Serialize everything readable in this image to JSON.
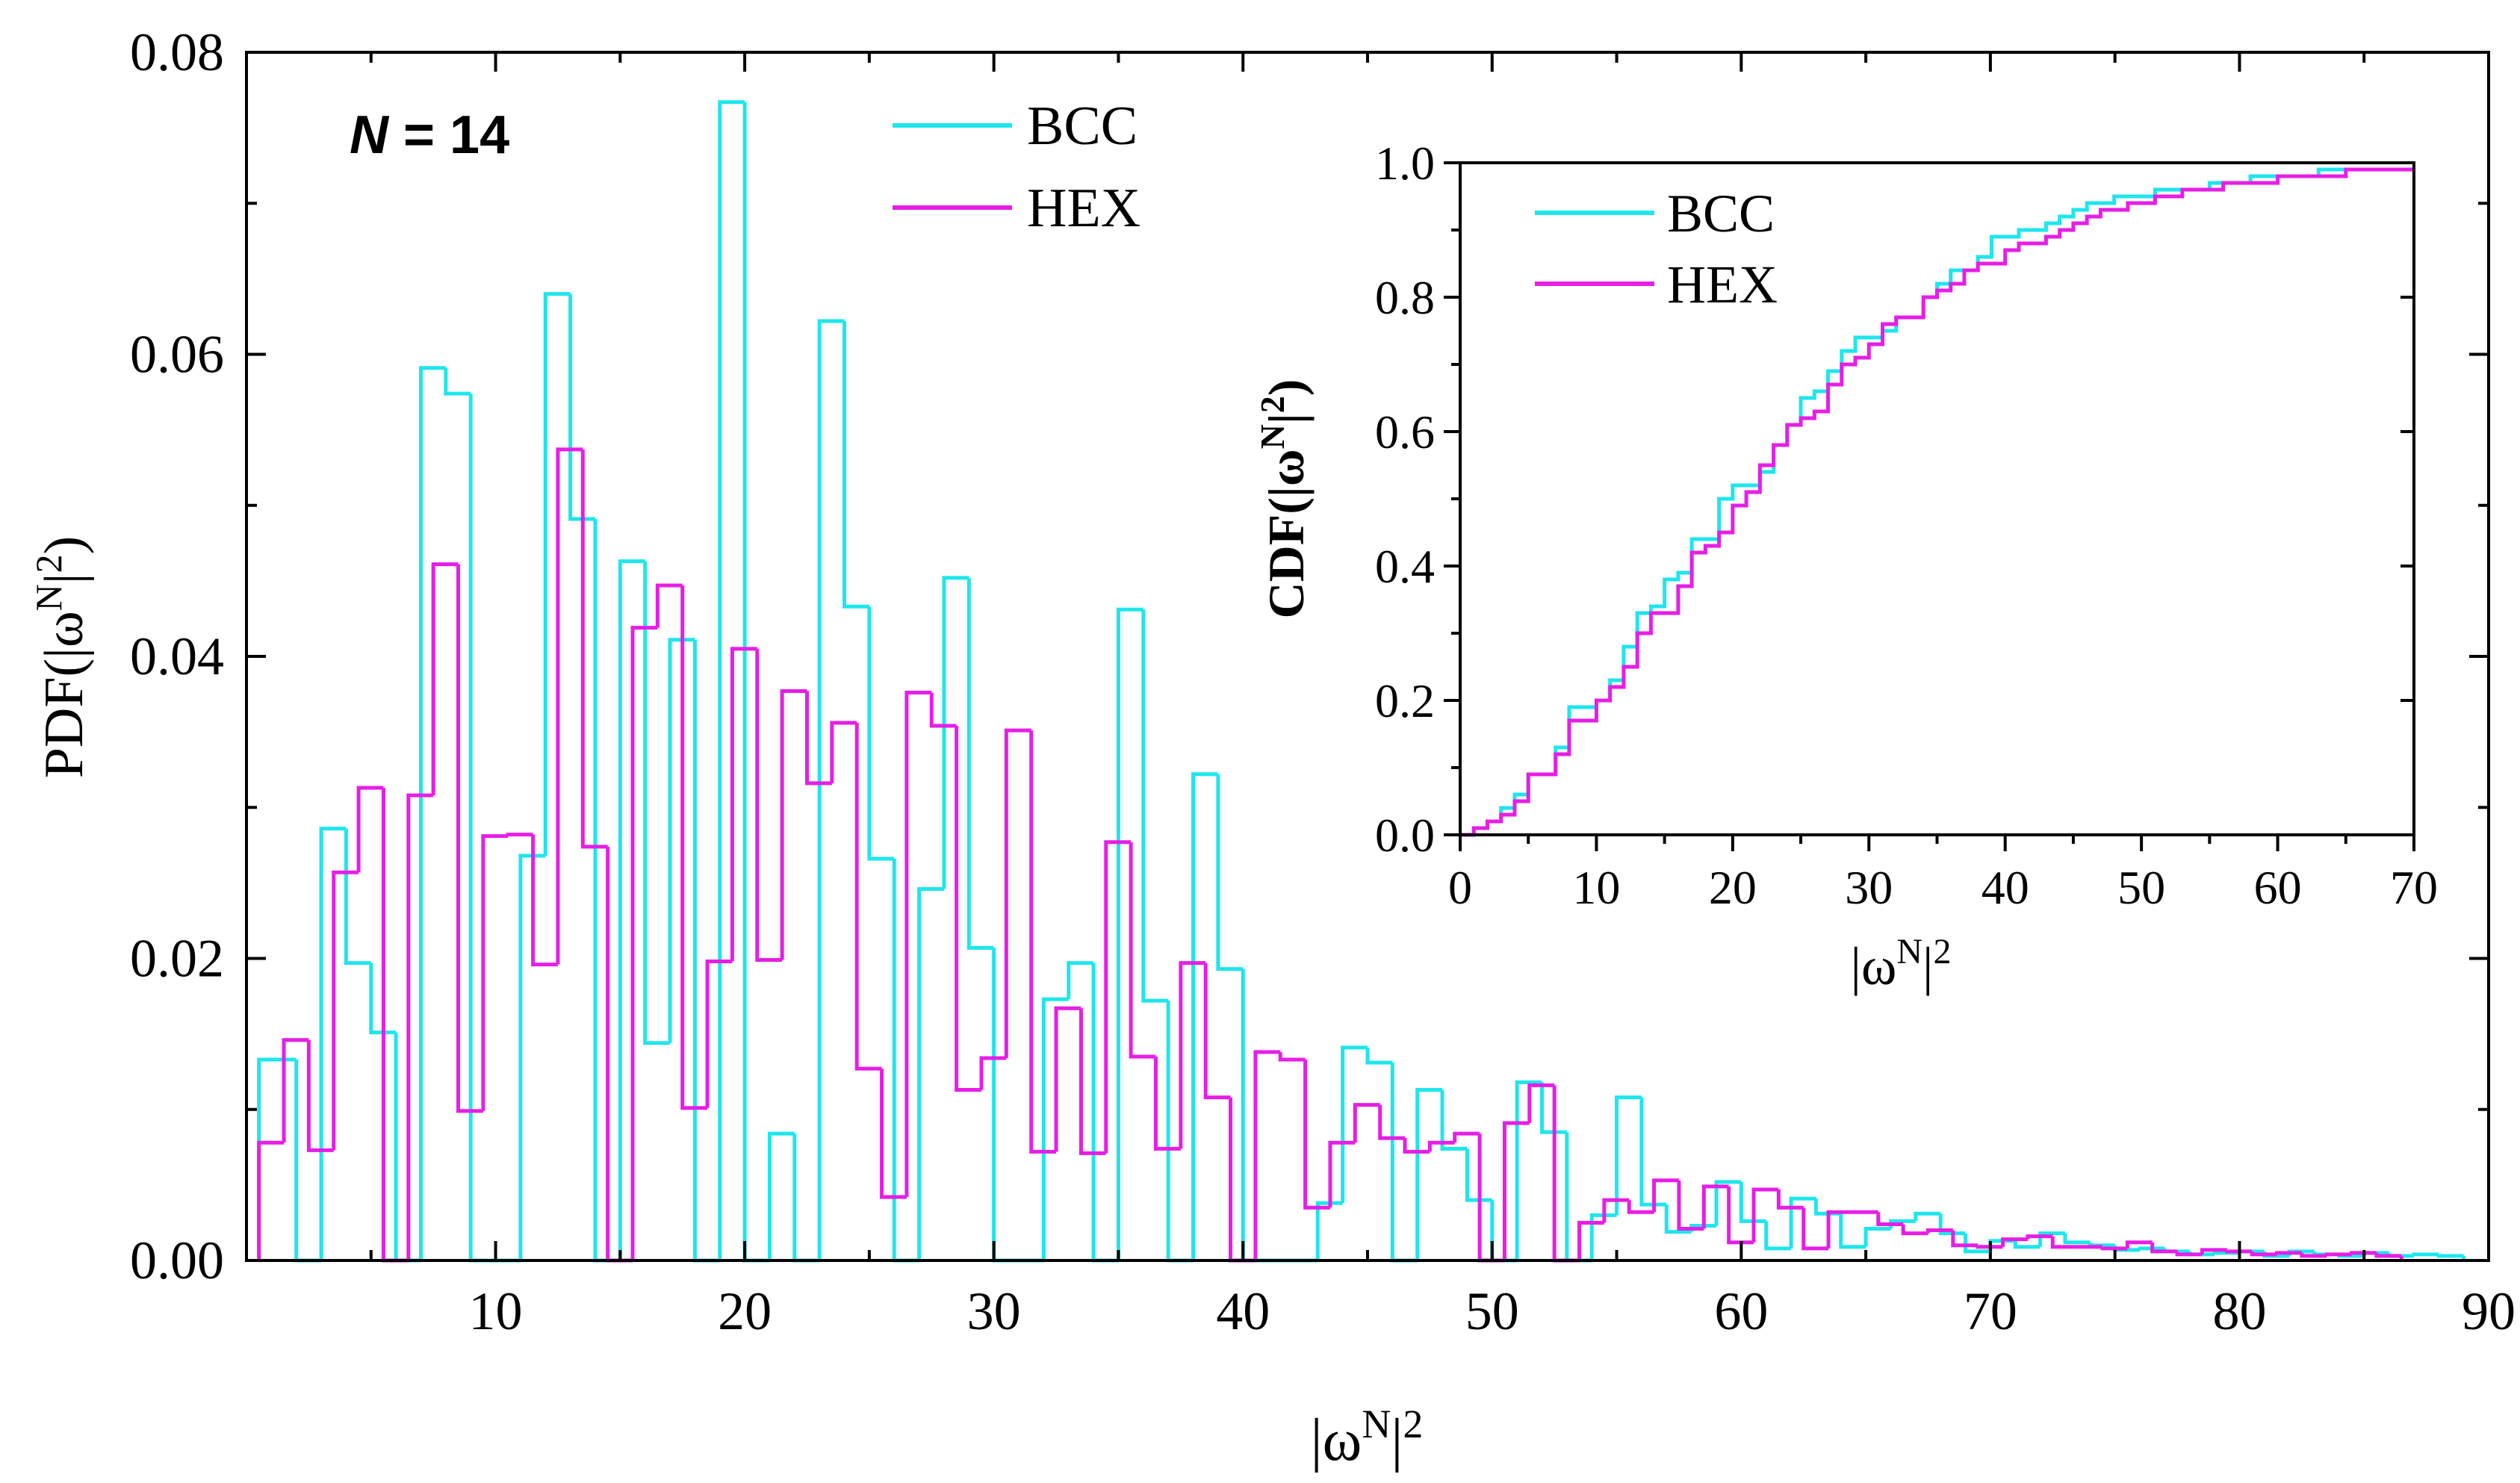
{
  "colors": {
    "bcc": "#1ee6ec",
    "hex": "#e61ee6",
    "axis": "#000000"
  },
  "chart_data": [
    {
      "type": "histogram",
      "role": "main",
      "annotation": {
        "prefix": "N",
        "suffix": " = 14"
      },
      "xlabel": {
        "prefix": "|ω",
        "sup1": "N",
        "mid": "|",
        "sup2": "2"
      },
      "ylabel": {
        "prefix": "PDF(|ω",
        "sup1": "N",
        "mid": "|",
        "sup2": "2",
        "suffix": ")"
      },
      "xlim": [
        0,
        90
      ],
      "ylim": [
        0,
        0.08
      ],
      "xticks": [
        10,
        20,
        30,
        40,
        50,
        60,
        70,
        80,
        90
      ],
      "xtick_labels": [
        "10",
        "20",
        "30",
        "40",
        "50",
        "60",
        "70",
        "80",
        "90"
      ],
      "yticks": [
        0,
        0.02,
        0.04,
        0.06,
        0.08
      ],
      "ytick_labels": [
        "0.00",
        "0.02",
        "0.04",
        "0.06",
        "0.08"
      ],
      "legend": [
        "BCC",
        "HEX"
      ],
      "series": [
        {
          "name": "BCC",
          "edges": [
            0.5,
            2,
            3,
            4,
            5,
            6,
            7,
            8,
            9,
            10,
            11,
            12,
            13,
            14,
            15,
            16,
            17,
            18,
            19,
            20,
            21,
            22,
            23,
            24,
            25,
            26,
            27,
            28,
            29,
            30,
            31,
            32,
            33,
            34,
            35,
            36,
            37,
            38,
            39,
            40,
            41,
            42,
            43,
            44,
            45,
            46,
            47,
            48,
            49,
            50,
            51,
            52,
            53,
            54,
            55,
            56,
            57,
            58,
            59,
            60,
            61,
            62,
            63,
            64,
            65,
            66,
            67,
            68,
            69,
            70,
            71,
            72,
            73,
            74,
            75,
            76,
            77,
            78,
            79,
            80,
            81,
            82,
            83,
            84,
            85,
            86,
            87,
            88,
            89
          ],
          "values": [
            0.0133,
            0.0,
            0.0286,
            0.0197,
            0.0151,
            0.0,
            0.0591,
            0.0574,
            0.0,
            0.0,
            0.0268,
            0.064,
            0.0491,
            0.0,
            0.0463,
            0.0144,
            0.0411,
            0.0,
            0.0767,
            0.0,
            0.0084,
            0.0,
            0.0622,
            0.0433,
            0.0266,
            0.0,
            0.0246,
            0.0452,
            0.0207,
            0.0,
            0.0,
            0.0173,
            0.0197,
            0.0,
            0.0431,
            0.0172,
            0.0,
            0.0322,
            0.0193,
            0.0,
            0.0,
            0.0,
            0.0038,
            0.0141,
            0.0131,
            0.0,
            0.0113,
            0.0074,
            0.004,
            0.0,
            0.0118,
            0.0085,
            0.0,
            0.003,
            0.0108,
            0.0037,
            0.0019,
            0.0023,
            0.0052,
            0.0026,
            0.0008,
            0.0041,
            0.0031,
            0.0009,
            0.0021,
            0.0026,
            0.0031,
            0.0018,
            0.0006,
            0.0013,
            0.0009,
            0.0018,
            0.0012,
            0.001,
            0.0007,
            0.0008,
            0.0006,
            0.0004,
            0.0005,
            0.0006,
            0.0003,
            0.0006,
            0.0004,
            0.0003,
            0.0005,
            0.0003,
            0.0004,
            0.0003
          ]
        },
        {
          "name": "HEX",
          "edges": [
            0.5,
            1.5,
            2.5,
            3.5,
            4.5,
            5.5,
            6.5,
            7.5,
            8.5,
            9.5,
            10.5,
            11.5,
            12.5,
            13.5,
            14.5,
            15.5,
            16.5,
            17.5,
            18.5,
            19.5,
            20.5,
            21.5,
            22.5,
            23.5,
            24.5,
            25.5,
            26.5,
            27.5,
            28.5,
            29.5,
            30.5,
            31.5,
            32.5,
            33.5,
            34.5,
            35.5,
            36.5,
            37.5,
            38.5,
            39.5,
            40.5,
            41.5,
            42.5,
            43.5,
            44.5,
            45.5,
            46.5,
            47.5,
            48.5,
            49.5,
            50.5,
            51.5,
            52.5,
            53.5,
            54.5,
            55.5,
            56.5,
            57.5,
            58.5,
            59.5,
            60.5,
            61.5,
            62.5,
            63.5,
            64.5,
            65.5,
            66.5,
            67.5,
            68.5,
            69.5,
            70.5,
            71.5,
            72.5,
            73.5,
            74.5,
            75.5,
            76.5,
            77.5,
            78.5,
            79.5,
            80.5,
            81.5,
            82.5,
            83.5,
            84.5,
            85.5,
            86.5
          ],
          "values": [
            0.0078,
            0.0146,
            0.0073,
            0.0257,
            0.0313,
            0.0,
            0.0308,
            0.0461,
            0.0099,
            0.0281,
            0.0282,
            0.0196,
            0.0537,
            0.0274,
            0.0,
            0.0419,
            0.0447,
            0.0101,
            0.0198,
            0.0405,
            0.0199,
            0.0377,
            0.0316,
            0.0356,
            0.0127,
            0.0042,
            0.0376,
            0.0354,
            0.0113,
            0.0134,
            0.0351,
            0.0072,
            0.0167,
            0.0071,
            0.0277,
            0.0135,
            0.0074,
            0.0197,
            0.0108,
            0.0,
            0.0138,
            0.0133,
            0.0035,
            0.0078,
            0.0103,
            0.0081,
            0.0072,
            0.0078,
            0.0084,
            0.0,
            0.0091,
            0.0116,
            0.0,
            0.0025,
            0.004,
            0.0032,
            0.0053,
            0.0021,
            0.0049,
            0.0012,
            0.0047,
            0.0035,
            0.0008,
            0.0032,
            0.0032,
            0.0024,
            0.0018,
            0.002,
            0.001,
            0.0009,
            0.0014,
            0.0016,
            0.0009,
            0.0009,
            0.0008,
            0.0012,
            0.0006,
            0.0004,
            0.0007,
            0.0006,
            0.0004,
            0.0005,
            0.0003,
            0.0004,
            0.0005,
            0.0003
          ]
        }
      ]
    },
    {
      "type": "step",
      "role": "inset",
      "xlabel": {
        "prefix": "|ω",
        "sup1": "N",
        "mid": "|",
        "sup2": "2"
      },
      "ylabel": {
        "prefix": "CDF(|ω",
        "sup1": "N",
        "mid": "|",
        "sup2": "2",
        "suffix": ")"
      },
      "xlim": [
        0,
        70
      ],
      "ylim": [
        0,
        1.0
      ],
      "xticks": [
        0,
        10,
        20,
        30,
        40,
        50,
        60,
        70
      ],
      "xtick_labels": [
        "0",
        "10",
        "20",
        "30",
        "40",
        "50",
        "60",
        "70"
      ],
      "yticks": [
        0,
        0.2,
        0.4,
        0.6,
        0.8,
        1.0
      ],
      "ytick_labels": [
        "0.0",
        "0.2",
        "0.4",
        "0.6",
        "0.8",
        "1.0"
      ],
      "legend": [
        "BCC",
        "HEX"
      ],
      "series": [
        {
          "name": "BCC",
          "x": [
            0,
            1,
            2,
            3,
            4,
            5,
            6,
            7,
            8,
            9,
            10,
            11,
            12,
            13,
            14,
            15,
            16,
            17,
            18,
            19,
            20,
            21,
            22,
            23,
            24,
            25,
            26,
            27,
            28,
            29,
            30,
            31,
            32,
            33,
            34,
            35,
            36,
            37,
            38,
            39,
            40,
            41,
            42,
            43,
            44,
            45,
            46,
            47,
            48,
            49,
            50,
            51,
            52,
            53,
            54,
            55,
            56,
            57,
            58,
            59,
            60,
            61,
            62,
            63,
            64,
            65,
            66,
            67,
            68,
            69,
            70
          ],
          "y": [
            0.0,
            0.01,
            0.02,
            0.04,
            0.06,
            0.09,
            0.09,
            0.13,
            0.19,
            0.19,
            0.2,
            0.23,
            0.28,
            0.33,
            0.34,
            0.38,
            0.39,
            0.44,
            0.44,
            0.5,
            0.52,
            0.52,
            0.54,
            0.58,
            0.61,
            0.65,
            0.66,
            0.69,
            0.72,
            0.74,
            0.74,
            0.75,
            0.77,
            0.77,
            0.8,
            0.82,
            0.84,
            0.84,
            0.86,
            0.89,
            0.89,
            0.9,
            0.9,
            0.91,
            0.92,
            0.93,
            0.94,
            0.94,
            0.95,
            0.95,
            0.95,
            0.96,
            0.96,
            0.96,
            0.96,
            0.97,
            0.97,
            0.97,
            0.98,
            0.98,
            0.98,
            0.98,
            0.98,
            0.99,
            0.99,
            0.99,
            0.99,
            0.99,
            0.99,
            0.99,
            0.99
          ]
        },
        {
          "name": "HEX",
          "x": [
            0,
            1,
            2,
            3,
            4,
            5,
            6,
            7,
            8,
            9,
            10,
            11,
            12,
            13,
            14,
            15,
            16,
            17,
            18,
            19,
            20,
            21,
            22,
            23,
            24,
            25,
            26,
            27,
            28,
            29,
            30,
            31,
            32,
            33,
            34,
            35,
            36,
            37,
            38,
            39,
            40,
            41,
            42,
            43,
            44,
            45,
            46,
            47,
            48,
            49,
            50,
            51,
            52,
            53,
            54,
            55,
            56,
            57,
            58,
            59,
            60,
            61,
            62,
            63,
            64,
            65,
            66,
            67,
            68,
            69,
            70
          ],
          "y": [
            0.0,
            0.01,
            0.02,
            0.03,
            0.05,
            0.09,
            0.09,
            0.12,
            0.17,
            0.17,
            0.2,
            0.22,
            0.25,
            0.3,
            0.33,
            0.33,
            0.37,
            0.42,
            0.43,
            0.45,
            0.49,
            0.51,
            0.55,
            0.58,
            0.61,
            0.62,
            0.63,
            0.67,
            0.7,
            0.71,
            0.73,
            0.76,
            0.77,
            0.77,
            0.8,
            0.81,
            0.82,
            0.84,
            0.85,
            0.85,
            0.87,
            0.88,
            0.88,
            0.89,
            0.9,
            0.91,
            0.92,
            0.93,
            0.93,
            0.94,
            0.94,
            0.95,
            0.95,
            0.96,
            0.96,
            0.96,
            0.97,
            0.97,
            0.97,
            0.97,
            0.98,
            0.98,
            0.98,
            0.98,
            0.98,
            0.99,
            0.99,
            0.99,
            0.99,
            0.99,
            0.99
          ]
        }
      ]
    }
  ]
}
